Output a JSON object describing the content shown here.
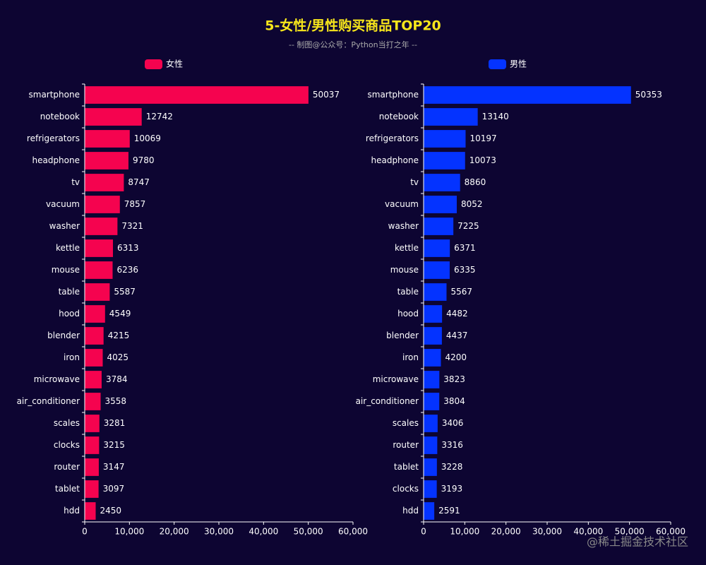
{
  "title": "5-女性/男性购买商品TOP20",
  "subtitle": "-- 制图@公众号：Python当打之年 --",
  "watermark": "@稀土掘金技术社区",
  "chart_data": [
    {
      "type": "barh",
      "categories": [
        "smartphone",
        "notebook",
        "refrigerators",
        "headphone",
        "tv",
        "vacuum",
        "washer",
        "kettle",
        "mouse",
        "table",
        "hood",
        "blender",
        "iron",
        "microwave",
        "air_conditioner",
        "scales",
        "clocks",
        "router",
        "tablet",
        "hdd"
      ],
      "series": [
        {
          "name": "女性",
          "color": "#f5034f",
          "values": [
            50037,
            12742,
            10069,
            9780,
            8747,
            7857,
            7321,
            6313,
            6236,
            5587,
            4549,
            4215,
            4025,
            3784,
            3558,
            3281,
            3215,
            3147,
            3097,
            2450
          ]
        }
      ],
      "xlim": [
        0,
        60000
      ],
      "xticks": [
        0,
        {
          "value": 10000,
          "label": "10,000"
        },
        {
          "value": 20000,
          "label": "20,000"
        },
        {
          "value": 30000,
          "label": "30,000"
        },
        {
          "value": 40000,
          "label": "40,000"
        },
        {
          "value": 50000,
          "label": "50,000"
        },
        {
          "value": 60000,
          "label": "60,000"
        }
      ]
    },
    {
      "type": "barh",
      "categories": [
        "smartphone",
        "notebook",
        "refrigerators",
        "headphone",
        "tv",
        "vacuum",
        "washer",
        "kettle",
        "mouse",
        "table",
        "hood",
        "blender",
        "iron",
        "microwave",
        "air_conditioner",
        "scales",
        "router",
        "tablet",
        "clocks",
        "hdd"
      ],
      "series": [
        {
          "name": "男性",
          "color": "#0433ff",
          "values": [
            50353,
            13140,
            10197,
            10073,
            8860,
            8052,
            7225,
            6371,
            6335,
            5567,
            4482,
            4437,
            4200,
            3823,
            3804,
            3406,
            3316,
            3228,
            3193,
            2591
          ]
        }
      ],
      "xlim": [
        0,
        60000
      ],
      "xticks": [
        0,
        {
          "value": 10000,
          "label": "10,000"
        },
        {
          "value": 20000,
          "label": "20,000"
        },
        {
          "value": 30000,
          "label": "30,000"
        },
        {
          "value": 40000,
          "label": "40,000"
        },
        {
          "value": 50000,
          "label": "50,000"
        },
        {
          "value": 60000,
          "label": "60,000"
        }
      ]
    }
  ]
}
